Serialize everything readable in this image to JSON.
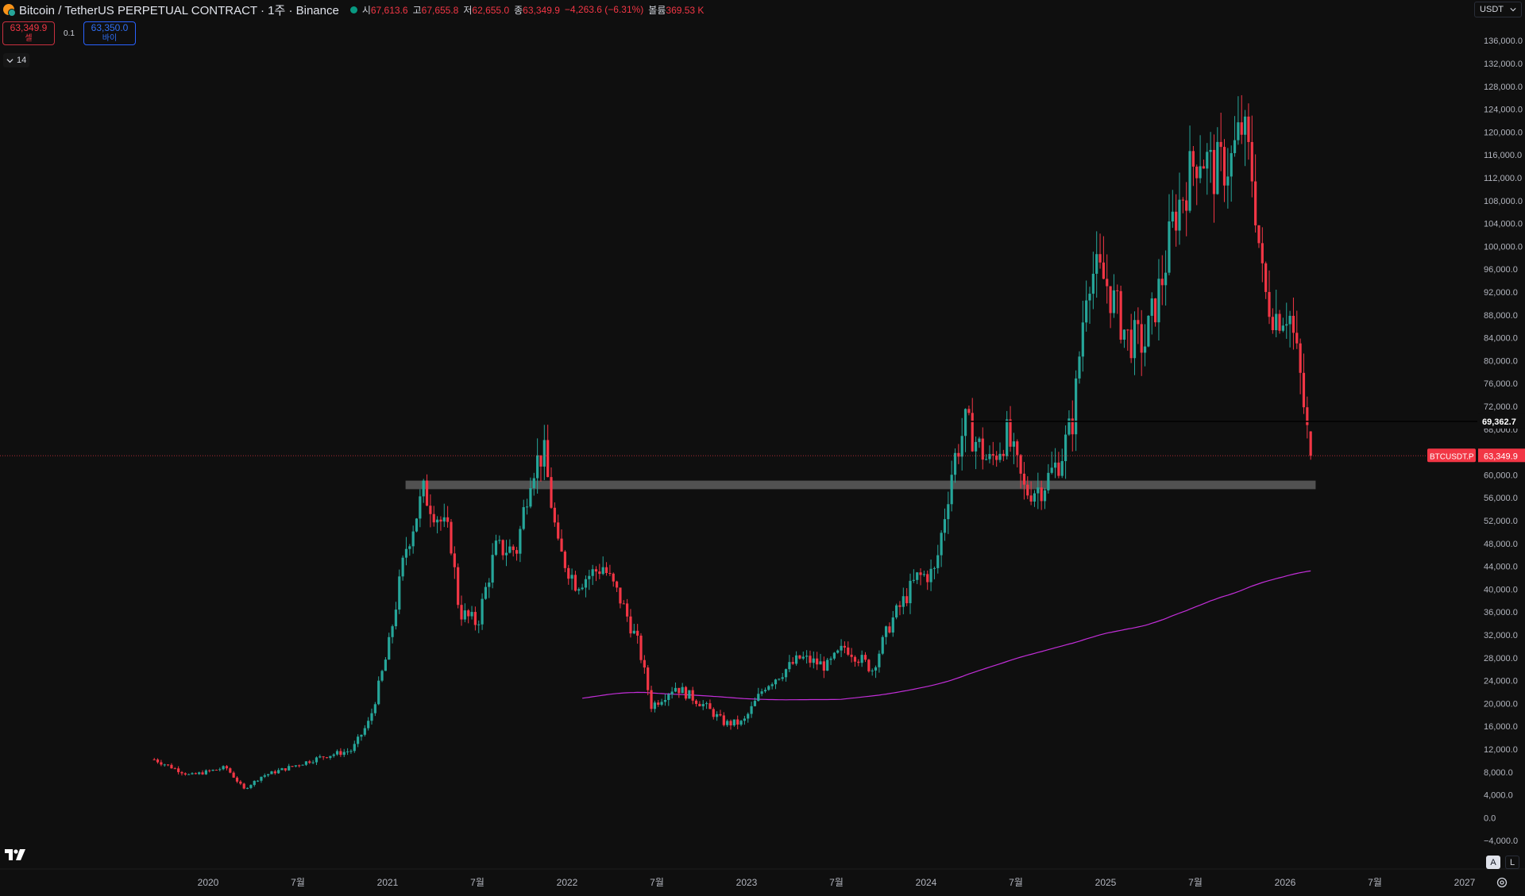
{
  "header": {
    "title": "Bitcoin / TetherUS PERPETUAL CONTRACT · 1주 · Binance",
    "ohlc": {
      "open_label": "시",
      "open": "67,613.6",
      "high_label": "고",
      "high": "67,655.8",
      "low_label": "저",
      "low": "62,655.0",
      "close_label": "종",
      "close": "63,349.9",
      "change": "−4,263.6 (−6.31%)",
      "volume_label": "볼륨",
      "volume": "369.53 K"
    }
  },
  "trade": {
    "sell_price": "63,349.9",
    "sell_label": "셀",
    "quantity": "0.1",
    "buy_price": "63,350.0",
    "buy_label": "바이"
  },
  "indicators_toggle": {
    "count": "14"
  },
  "currency": {
    "label": "USDT"
  },
  "scale_buttons": {
    "auto": "A",
    "log": "L"
  },
  "price_axis": {
    "ticks": [
      "136,000.0",
      "132,000.0",
      "128,000.0",
      "124,000.0",
      "120,000.0",
      "116,000.0",
      "112,000.0",
      "108,000.0",
      "104,000.0",
      "100,000.0",
      "96,000.0",
      "92,000.0",
      "88,000.0",
      "84,000.0",
      "80,000.0",
      "76,000.0",
      "72,000.0",
      "68,000.0",
      "64,000.0",
      "60,000.0",
      "56,000.0",
      "52,000.0",
      "48,000.0",
      "44,000.0",
      "40,000.0",
      "36,000.0",
      "32,000.0",
      "28,000.0",
      "24,000.0",
      "20,000.0",
      "16,000.0",
      "12,000.0",
      "8,000.0",
      "4,000.0",
      "0.0",
      "−4,000.0"
    ],
    "tick_values": [
      136000,
      132000,
      128000,
      124000,
      120000,
      116000,
      112000,
      108000,
      104000,
      100000,
      96000,
      92000,
      88000,
      84000,
      80000,
      76000,
      72000,
      68000,
      64000,
      60000,
      56000,
      52000,
      48000,
      44000,
      40000,
      36000,
      32000,
      28000,
      24000,
      20000,
      16000,
      12000,
      8000,
      4000,
      0,
      -4000
    ],
    "horizontal_line_label": "69,362.7",
    "current_symbol_label": "BTCUSDT.P",
    "current_price_label": "63,349.9"
  },
  "time_axis": {
    "labels": [
      "2020",
      "7월",
      "2021",
      "7월",
      "2022",
      "7월",
      "2023",
      "7월",
      "2024",
      "7월",
      "2025",
      "7월",
      "2026",
      "7월",
      "2027"
    ],
    "positions": [
      2020.0,
      2020.5,
      2021.0,
      2021.5,
      2022.0,
      2022.5,
      2023.0,
      2023.5,
      2024.0,
      2024.5,
      2025.0,
      2025.5,
      2026.0,
      2026.5,
      2027.0
    ]
  },
  "colors": {
    "up": "#26a69a",
    "down": "#f23645",
    "ma": "#c22ed8",
    "zone": "#5d5d5d",
    "hline": "#d1d4dc",
    "grid": "#0f0f0f"
  },
  "chart_data": {
    "type": "candlestick",
    "symbol": "BTCUSDT.P",
    "interval": "1W",
    "ylim": [
      -6000,
      140000
    ],
    "xlim": [
      2019.0,
      2027.0
    ],
    "support_zone": {
      "from": 2021.1,
      "to": 2026.17,
      "low": 57500,
      "high": 59000
    },
    "horizontal_line": 69362.7,
    "price_anchor": [
      [
        2019.7,
        10200
      ],
      [
        2019.9,
        7400
      ],
      [
        2020.1,
        8800
      ],
      [
        2020.2,
        5000
      ],
      [
        2020.3,
        7300
      ],
      [
        2020.5,
        9300
      ],
      [
        2020.65,
        10800
      ],
      [
        2020.8,
        11800
      ],
      [
        2020.9,
        17000
      ],
      [
        2021.0,
        29000
      ],
      [
        2021.1,
        47000
      ],
      [
        2021.2,
        57000
      ],
      [
        2021.35,
        49000
      ],
      [
        2021.4,
        36000
      ],
      [
        2021.5,
        34000
      ],
      [
        2021.6,
        47000
      ],
      [
        2021.72,
        47000
      ],
      [
        2021.8,
        61000
      ],
      [
        2021.87,
        64000
      ],
      [
        2021.95,
        47000
      ],
      [
        2022.05,
        41000
      ],
      [
        2022.2,
        44000
      ],
      [
        2022.3,
        38000
      ],
      [
        2022.4,
        30000
      ],
      [
        2022.47,
        19500
      ],
      [
        2022.6,
        23000
      ],
      [
        2022.75,
        20000
      ],
      [
        2022.88,
        16500
      ],
      [
        2022.98,
        16600
      ],
      [
        2023.1,
        23000
      ],
      [
        2023.3,
        28000
      ],
      [
        2023.45,
        26500
      ],
      [
        2023.55,
        30000
      ],
      [
        2023.7,
        26000
      ],
      [
        2023.8,
        34000
      ],
      [
        2023.95,
        42000
      ],
      [
        2024.05,
        43000
      ],
      [
        2024.15,
        62000
      ],
      [
        2024.22,
        69000
      ],
      [
        2024.35,
        62000
      ],
      [
        2024.45,
        67000
      ],
      [
        2024.55,
        57000
      ],
      [
        2024.65,
        58000
      ],
      [
        2024.75,
        63000
      ],
      [
        2024.82,
        70000
      ],
      [
        2024.9,
        96000
      ],
      [
        2025.0,
        94000
      ],
      [
        2025.12,
        84000
      ],
      [
        2025.22,
        83000
      ],
      [
        2025.32,
        95000
      ],
      [
        2025.38,
        105000
      ],
      [
        2025.52,
        117000
      ],
      [
        2025.6,
        113000
      ],
      [
        2025.7,
        115000
      ],
      [
        2025.76,
        121000
      ],
      [
        2025.82,
        112000
      ],
      [
        2025.88,
        92000
      ],
      [
        2025.95,
        88000
      ],
      [
        2026.02,
        89000
      ],
      [
        2026.08,
        78000
      ],
      [
        2026.12,
        68000
      ],
      [
        2026.15,
        63349.9
      ]
    ],
    "last_candle": {
      "open": 67613.6,
      "high": 67655.8,
      "low": 62655.0,
      "close": 63349.9,
      "change": -4263.6,
      "change_pct": -6.31,
      "volume": "369.53 K"
    }
  }
}
